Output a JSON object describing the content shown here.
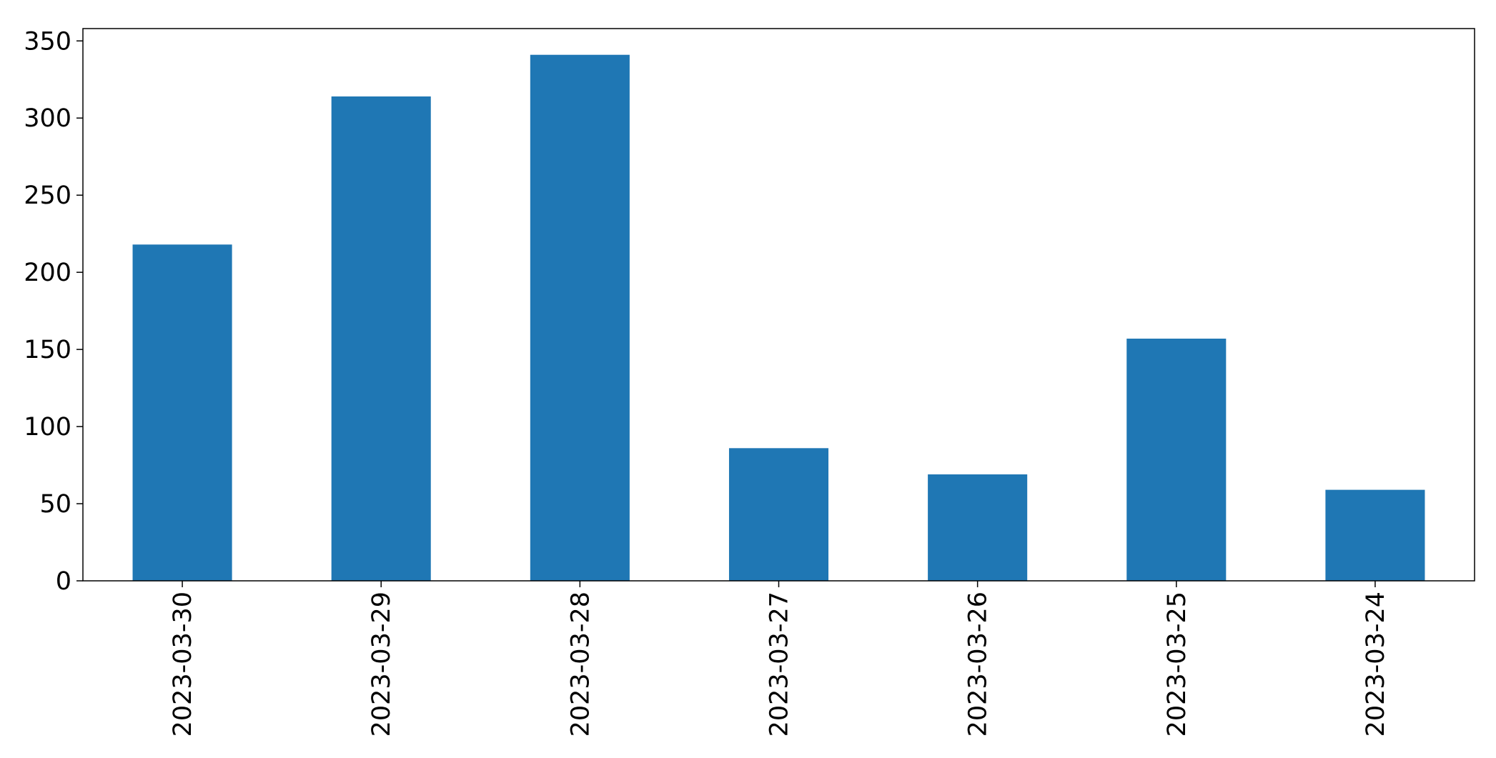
{
  "chart_data": {
    "type": "bar",
    "title": "",
    "xlabel": "",
    "ylabel": "",
    "categories": [
      "2023-03-30",
      "2023-03-29",
      "2023-03-28",
      "2023-03-27",
      "2023-03-26",
      "2023-03-25",
      "2023-03-24"
    ],
    "values": [
      218,
      314,
      341,
      86,
      69,
      157,
      59
    ],
    "ylim": [
      0,
      358
    ],
    "yticks": [
      0,
      50,
      100,
      150,
      200,
      250,
      300,
      350
    ],
    "ytick_labels": [
      "0",
      "50",
      "100",
      "150",
      "200",
      "250",
      "300",
      "350"
    ],
    "bar_color": "#1f77b4",
    "xtick_rotation": "vertical",
    "grid": false,
    "legend": false
  }
}
